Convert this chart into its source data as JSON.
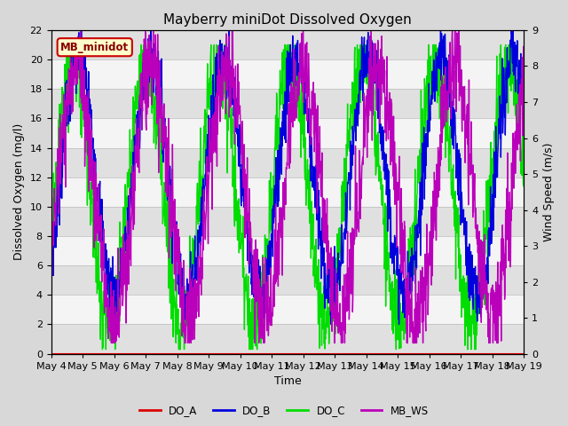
{
  "title": "Mayberry miniDot Dissolved Oxygen",
  "ylabel_left": "Dissolved Oxygen (mg/l)",
  "ylabel_right": "Wind Speed (m/s)",
  "xlabel": "Time",
  "ylim_left": [
    0,
    22
  ],
  "ylim_right": [
    0.0,
    9.0
  ],
  "yticks_left": [
    0,
    2,
    4,
    6,
    8,
    10,
    12,
    14,
    16,
    18,
    20,
    22
  ],
  "yticks_right": [
    0.0,
    1.0,
    2.0,
    3.0,
    4.0,
    5.0,
    6.0,
    7.0,
    8.0,
    9.0
  ],
  "xtick_days": [
    4,
    5,
    6,
    7,
    8,
    9,
    10,
    11,
    12,
    13,
    14,
    15,
    16,
    17,
    18,
    19
  ],
  "color_DO_A": "#dd0000",
  "color_DO_B": "#0000dd",
  "color_DO_C": "#00dd00",
  "color_MB_WS": "#bb00bb",
  "legend_label": "MB_minidot",
  "legend_box_facecolor": "#ffffcc",
  "legend_box_edgecolor": "#cc0000",
  "fig_facecolor": "#d8d8d8",
  "plot_facecolor": "#e8e8e8",
  "band_light": "#f4f4f4",
  "band_dark": "#e0e0e0",
  "title_fontsize": 11,
  "axis_label_fontsize": 9,
  "tick_fontsize": 8,
  "linewidth": 1.0,
  "n_points": 1500,
  "n_days": 15
}
